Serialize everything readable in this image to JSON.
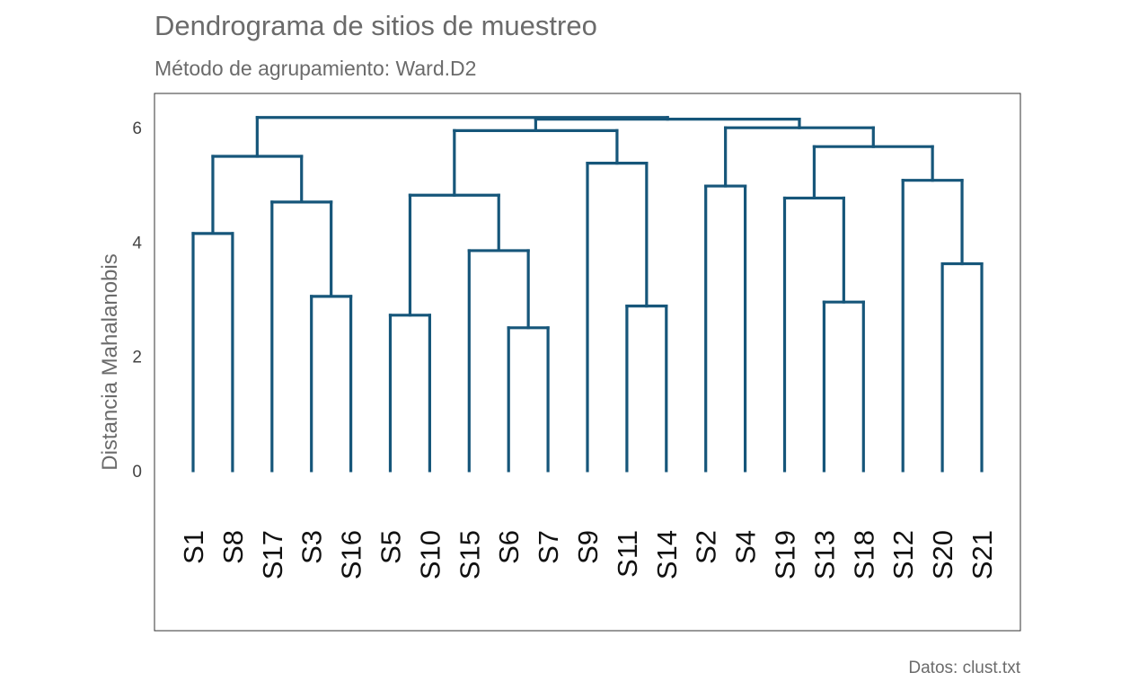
{
  "chart_data": {
    "type": "dendrogram",
    "title": "Dendrograma de sitios de muestreo",
    "subtitle": "Método de agrupamiento: Ward.D2",
    "ylabel": "Distancia Mahalanobis",
    "caption": "Datos: clust.txt",
    "ylim": [
      -2.8,
      6.6
    ],
    "yticks": [
      0,
      2,
      4,
      6
    ],
    "leaves": [
      "S1",
      "S8",
      "S17",
      "S3",
      "S16",
      "S5",
      "S10",
      "S15",
      "S6",
      "S7",
      "S9",
      "S11",
      "S14",
      "S2",
      "S4",
      "S19",
      "S13",
      "S18",
      "S12",
      "S20",
      "S21"
    ],
    "merges": [
      {
        "height": 4.15,
        "left": "S1",
        "right": "S8"
      },
      {
        "height": 3.05,
        "left": "S3",
        "right": "S16"
      },
      {
        "height": 4.7,
        "left": "S17",
        "right": 2
      },
      {
        "height": 5.5,
        "left": 1,
        "right": 3
      },
      {
        "height": 2.72,
        "left": "S5",
        "right": "S10"
      },
      {
        "height": 2.5,
        "left": "S6",
        "right": "S7"
      },
      {
        "height": 3.85,
        "left": "S15",
        "right": 6
      },
      {
        "height": 4.82,
        "left": 5,
        "right": 7
      },
      {
        "height": 2.88,
        "left": "S11",
        "right": "S14"
      },
      {
        "height": 5.38,
        "left": "S9",
        "right": 9
      },
      {
        "height": 5.95,
        "left": 8,
        "right": 10
      },
      {
        "height": 4.98,
        "left": "S2",
        "right": "S4"
      },
      {
        "height": 2.95,
        "left": "S13",
        "right": "S18"
      },
      {
        "height": 4.77,
        "left": "S19",
        "right": 13
      },
      {
        "height": 3.62,
        "left": "S20",
        "right": "S21"
      },
      {
        "height": 5.08,
        "left": "S12",
        "right": 15
      },
      {
        "height": 5.67,
        "left": 14,
        "right": 16
      },
      {
        "height": 6.0,
        "left": 12,
        "right": 17
      },
      {
        "height": 6.15,
        "left": 11,
        "right": 18
      },
      {
        "height": 6.18,
        "left": 4,
        "right": 19
      }
    ],
    "color": "#16567a"
  }
}
